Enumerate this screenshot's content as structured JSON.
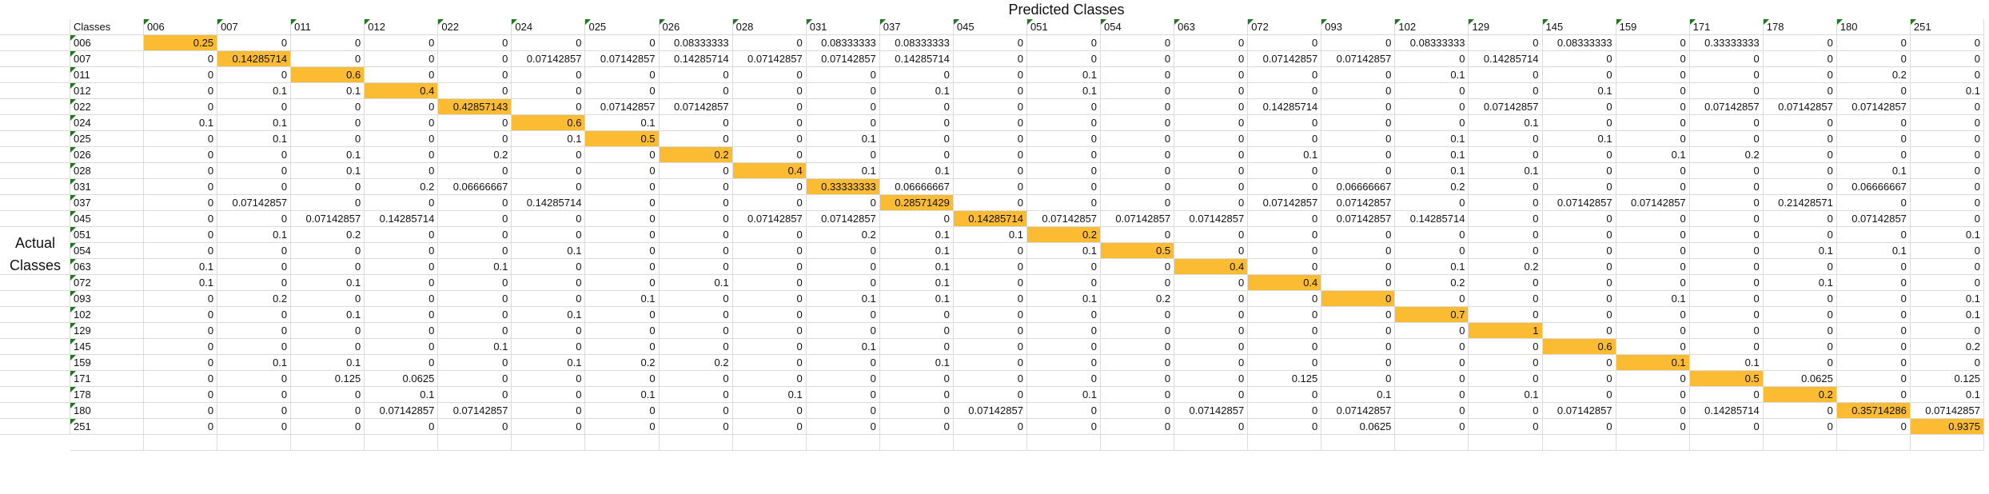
{
  "title_top": "Predicted Classes",
  "title_left": [
    "Actual",
    "Classes"
  ],
  "corner_label": "Classes",
  "highlight_color": "#fbbb33",
  "flag_color": "#1e7a1e",
  "classes": [
    "006",
    "007",
    "011",
    "012",
    "022",
    "024",
    "025",
    "026",
    "028",
    "031",
    "037",
    "045",
    "051",
    "054",
    "063",
    "072",
    "093",
    "102",
    "129",
    "145",
    "159",
    "171",
    "178",
    "180",
    "251"
  ],
  "rows": [
    [
      "0.25",
      "0",
      "0",
      "0",
      "0",
      "0",
      "0",
      "0.08333333",
      "0",
      "0.08333333",
      "0.08333333",
      "0",
      "0",
      "0",
      "0",
      "0",
      "0",
      "0.08333333",
      "0",
      "0.08333333",
      "0",
      "0.33333333",
      "0",
      "0",
      "0"
    ],
    [
      "0",
      "0.14285714",
      "0",
      "0",
      "0",
      "0.07142857",
      "0.07142857",
      "0.14285714",
      "0.07142857",
      "0.07142857",
      "0.14285714",
      "0",
      "0",
      "0",
      "0",
      "0.07142857",
      "0.07142857",
      "0",
      "0.14285714",
      "0",
      "0",
      "0",
      "0",
      "0",
      "0"
    ],
    [
      "0",
      "0",
      "0.6",
      "0",
      "0",
      "0",
      "0",
      "0",
      "0",
      "0",
      "0",
      "0",
      "0.1",
      "0",
      "0",
      "0",
      "0",
      "0.1",
      "0",
      "0",
      "0",
      "0",
      "0",
      "0.2",
      "0"
    ],
    [
      "0",
      "0.1",
      "0.1",
      "0.4",
      "0",
      "0",
      "0",
      "0",
      "0",
      "0",
      "0.1",
      "0",
      "0.1",
      "0",
      "0",
      "0",
      "0",
      "0",
      "0",
      "0.1",
      "0",
      "0",
      "0",
      "0",
      "0.1"
    ],
    [
      "0",
      "0",
      "0",
      "0",
      "0.42857143",
      "0",
      "0.07142857",
      "0.07142857",
      "0",
      "0",
      "0",
      "0",
      "0",
      "0",
      "0",
      "0.14285714",
      "0",
      "0",
      "0.07142857",
      "0",
      "0",
      "0.07142857",
      "0.07142857",
      "0.07142857",
      "0"
    ],
    [
      "0.1",
      "0.1",
      "0",
      "0",
      "0",
      "0.6",
      "0.1",
      "0",
      "0",
      "0",
      "0",
      "0",
      "0",
      "0",
      "0",
      "0",
      "0",
      "0",
      "0.1",
      "0",
      "0",
      "0",
      "0",
      "0",
      "0"
    ],
    [
      "0",
      "0.1",
      "0",
      "0",
      "0",
      "0.1",
      "0.5",
      "0",
      "0",
      "0.1",
      "0",
      "0",
      "0",
      "0",
      "0",
      "0",
      "0",
      "0.1",
      "0",
      "0.1",
      "0",
      "0",
      "0",
      "0",
      "0"
    ],
    [
      "0",
      "0",
      "0.1",
      "0",
      "0.2",
      "0",
      "0",
      "0.2",
      "0",
      "0",
      "0",
      "0",
      "0",
      "0",
      "0",
      "0.1",
      "0",
      "0.1",
      "0",
      "0",
      "0.1",
      "0.2",
      "0",
      "0",
      "0"
    ],
    [
      "0",
      "0",
      "0.1",
      "0",
      "0",
      "0",
      "0",
      "0",
      "0.4",
      "0.1",
      "0.1",
      "0",
      "0",
      "0",
      "0",
      "0",
      "0",
      "0.1",
      "0.1",
      "0",
      "0",
      "0",
      "0",
      "0.1",
      "0"
    ],
    [
      "0",
      "0",
      "0",
      "0.2",
      "0.06666667",
      "0",
      "0",
      "0",
      "0",
      "0.33333333",
      "0.06666667",
      "0",
      "0",
      "0",
      "0",
      "0",
      "0.06666667",
      "0.2",
      "0",
      "0",
      "0",
      "0",
      "0",
      "0.06666667",
      "0"
    ],
    [
      "0",
      "0.07142857",
      "0",
      "0",
      "0",
      "0.14285714",
      "0",
      "0",
      "0",
      "0",
      "0.28571429",
      "0",
      "0",
      "0",
      "0",
      "0.07142857",
      "0.07142857",
      "0",
      "0",
      "0.07142857",
      "0.07142857",
      "0",
      "0.21428571",
      "0",
      "0"
    ],
    [
      "0",
      "0",
      "0.07142857",
      "0.14285714",
      "0",
      "0",
      "0",
      "0",
      "0.07142857",
      "0.07142857",
      "0",
      "0.14285714",
      "0.07142857",
      "0.07142857",
      "0.07142857",
      "0",
      "0.07142857",
      "0.14285714",
      "0",
      "0",
      "0",
      "0",
      "0",
      "0.07142857",
      "0"
    ],
    [
      "0",
      "0.1",
      "0.2",
      "0",
      "0",
      "0",
      "0",
      "0",
      "0",
      "0.2",
      "0.1",
      "0.1",
      "0.2",
      "0",
      "0",
      "0",
      "0",
      "0",
      "0",
      "0",
      "0",
      "0",
      "0",
      "0",
      "0.1"
    ],
    [
      "0",
      "0",
      "0",
      "0",
      "0",
      "0.1",
      "0",
      "0",
      "0",
      "0",
      "0.1",
      "0",
      "0.1",
      "0.5",
      "0",
      "0",
      "0",
      "0",
      "0",
      "0",
      "0",
      "0",
      "0.1",
      "0.1",
      "0"
    ],
    [
      "0.1",
      "0",
      "0",
      "0",
      "0.1",
      "0",
      "0",
      "0",
      "0",
      "0",
      "0.1",
      "0",
      "0",
      "0",
      "0.4",
      "0",
      "0",
      "0.1",
      "0.2",
      "0",
      "0",
      "0",
      "0",
      "0",
      "0"
    ],
    [
      "0.1",
      "0",
      "0.1",
      "0",
      "0",
      "0",
      "0",
      "0.1",
      "0",
      "0",
      "0.1",
      "0",
      "0",
      "0",
      "0",
      "0.4",
      "0",
      "0.2",
      "0",
      "0",
      "0",
      "0",
      "0.1",
      "0",
      "0"
    ],
    [
      "0",
      "0.2",
      "0",
      "0",
      "0",
      "0",
      "0.1",
      "0",
      "0",
      "0.1",
      "0.1",
      "0",
      "0.1",
      "0.2",
      "0",
      "0",
      "0",
      "0",
      "0",
      "0",
      "0.1",
      "0",
      "0",
      "0",
      "0.1"
    ],
    [
      "0",
      "0",
      "0.1",
      "0",
      "0",
      "0.1",
      "0",
      "0",
      "0",
      "0",
      "0",
      "0",
      "0",
      "0",
      "0",
      "0",
      "0",
      "0.7",
      "0",
      "0",
      "0",
      "0",
      "0",
      "0",
      "0.1"
    ],
    [
      "0",
      "0",
      "0",
      "0",
      "0",
      "0",
      "0",
      "0",
      "0",
      "0",
      "0",
      "0",
      "0",
      "0",
      "0",
      "0",
      "0",
      "0",
      "1",
      "0",
      "0",
      "0",
      "0",
      "0",
      "0"
    ],
    [
      "0",
      "0",
      "0",
      "0",
      "0.1",
      "0",
      "0",
      "0",
      "0",
      "0.1",
      "0",
      "0",
      "0",
      "0",
      "0",
      "0",
      "0",
      "0",
      "0",
      "0.6",
      "0",
      "0",
      "0",
      "0",
      "0.2"
    ],
    [
      "0",
      "0.1",
      "0.1",
      "0",
      "0",
      "0.1",
      "0.2",
      "0.2",
      "0",
      "0",
      "0.1",
      "0",
      "0",
      "0",
      "0",
      "0",
      "0",
      "0",
      "0",
      "0",
      "0.1",
      "0.1",
      "0",
      "0",
      "0"
    ],
    [
      "0",
      "0",
      "0.125",
      "0.0625",
      "0",
      "0",
      "0",
      "0",
      "0",
      "0",
      "0",
      "0",
      "0",
      "0",
      "0",
      "0.125",
      "0",
      "0",
      "0",
      "0",
      "0",
      "0.5",
      "0.0625",
      "0",
      "0.125"
    ],
    [
      "0",
      "0",
      "0",
      "0.1",
      "0",
      "0",
      "0.1",
      "0",
      "0.1",
      "0",
      "0",
      "0",
      "0.1",
      "0",
      "0",
      "0",
      "0.1",
      "0",
      "0.1",
      "0",
      "0",
      "0",
      "0.2",
      "0",
      "0.1"
    ],
    [
      "0",
      "0",
      "0",
      "0.07142857",
      "0.07142857",
      "0",
      "0",
      "0",
      "0",
      "0",
      "0",
      "0.07142857",
      "0",
      "0",
      "0.07142857",
      "0",
      "0.07142857",
      "0",
      "0",
      "0.07142857",
      "0",
      "0.14285714",
      "0",
      "0.35714286",
      "0.07142857"
    ],
    [
      "0",
      "0",
      "0",
      "0",
      "0",
      "0",
      "0",
      "0",
      "0",
      "0",
      "0",
      "0",
      "0",
      "0",
      "0",
      "0",
      "0.0625",
      "0",
      "0",
      "0",
      "0",
      "0",
      "0",
      "0",
      "0.9375"
    ]
  ]
}
